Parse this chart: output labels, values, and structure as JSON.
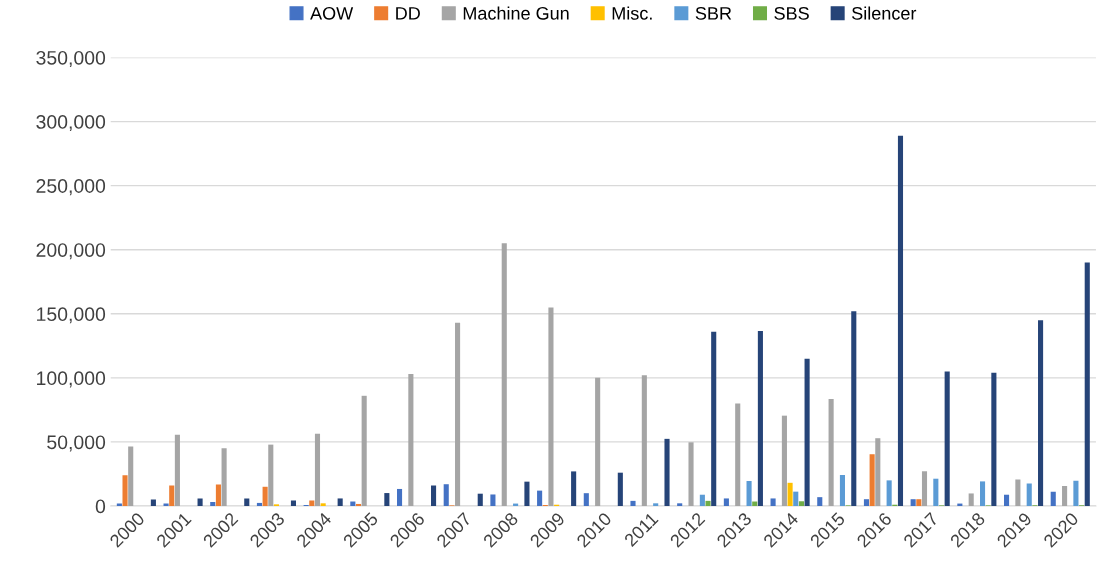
{
  "chart_data": {
    "type": "bar",
    "categories": [
      "2000",
      "2001",
      "2002",
      "2003",
      "2004",
      "2005",
      "2006",
      "2007",
      "2008",
      "2009",
      "2010",
      "2011",
      "2012",
      "2013",
      "2014",
      "2015",
      "2016",
      "2017",
      "2018",
      "2019",
      "2020"
    ],
    "series": [
      {
        "name": "AOW",
        "color": "#4472c4",
        "values": [
          1900,
          2000,
          3200,
          2400,
          800,
          3500,
          13300,
          17000,
          9000,
          12000,
          10000,
          4000,
          2100,
          5900,
          5900,
          6900,
          5300,
          5300,
          1900,
          8800,
          11200
        ]
      },
      {
        "name": "DD",
        "color": "#ed7d31",
        "values": [
          24000,
          16000,
          16800,
          15000,
          4300,
          1600,
          0,
          500,
          0,
          800,
          0,
          0,
          0,
          0,
          0,
          0,
          40400,
          5300,
          0,
          0,
          0
        ]
      },
      {
        "name": "Machine Gun",
        "color": "#a5a5a5",
        "values": [
          46500,
          55600,
          45000,
          47900,
          56400,
          86000,
          103000,
          143000,
          205000,
          155000,
          100000,
          102000,
          49700,
          80000,
          70500,
          83500,
          52900,
          27100,
          9800,
          20700,
          15700
        ]
      },
      {
        "name": "Misc.",
        "color": "#ffc000",
        "values": [
          0,
          0,
          0,
          1300,
          2100,
          0,
          0,
          0,
          0,
          1000,
          0,
          0,
          0,
          0,
          18100,
          0,
          0,
          0,
          0,
          0,
          0
        ]
      },
      {
        "name": "SBR",
        "color": "#5b9bd5",
        "values": [
          0,
          0,
          0,
          0,
          0,
          0,
          0,
          0,
          1900,
          0,
          0,
          2100,
          8800,
          19500,
          11200,
          24200,
          20000,
          21300,
          19200,
          17600,
          19700
        ]
      },
      {
        "name": "SBS",
        "color": "#70ad47",
        "values": [
          0,
          0,
          0,
          0,
          0,
          0,
          0,
          0,
          0,
          0,
          0,
          0,
          4000,
          3500,
          3700,
          500,
          1000,
          500,
          500,
          500,
          500
        ]
      },
      {
        "name": "Silencer",
        "color": "#264478",
        "values": [
          5000,
          5900,
          5900,
          4300,
          5900,
          10100,
          16000,
          9600,
          19000,
          27000,
          26000,
          52400,
          136000,
          136500,
          115000,
          152000,
          289000,
          105000,
          104000,
          145000,
          190000
        ]
      }
    ],
    "ylim": [
      0,
      350000
    ],
    "yticks": [
      {
        "value": 0,
        "label": "0"
      },
      {
        "value": 50000,
        "label": "50,000"
      },
      {
        "value": 100000,
        "label": "100,000"
      },
      {
        "value": 150000,
        "label": "150,000"
      },
      {
        "value": 200000,
        "label": "200,000"
      },
      {
        "value": 250000,
        "label": "250,000"
      },
      {
        "value": 300000,
        "label": "300,000"
      },
      {
        "value": 350000,
        "label": "350,000"
      }
    ],
    "grid": "y",
    "legend": "top"
  }
}
